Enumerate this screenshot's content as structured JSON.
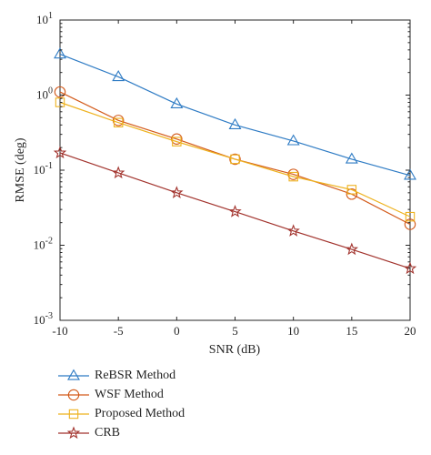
{
  "chart_data": {
    "type": "line",
    "xlabel": "SNR (dB)",
    "ylabel": "RMSE (deg)",
    "x": [
      -10,
      -5,
      0,
      5,
      10,
      15,
      20
    ],
    "xticks": [
      "-10",
      "-5",
      "0",
      "5",
      "10",
      "15",
      "20"
    ],
    "xlim": [
      -10,
      20
    ],
    "ylim": [
      0.001,
      10
    ],
    "yscale": "log",
    "yticks": [
      {
        "value": 0.001,
        "base": "10",
        "exp": "-3"
      },
      {
        "value": 0.01,
        "base": "10",
        "exp": "-2"
      },
      {
        "value": 0.1,
        "base": "10",
        "exp": "-1"
      },
      {
        "value": 1,
        "base": "10",
        "exp": "0"
      },
      {
        "value": 10,
        "base": "10",
        "exp": "1"
      }
    ],
    "grid": false,
    "legend_position": "bottom",
    "series": [
      {
        "name": "ReBSR Method",
        "color": "#2e7bc4",
        "marker": "triangle",
        "values": [
          3.5,
          1.75,
          0.76,
          0.4,
          0.245,
          0.14,
          0.085
        ]
      },
      {
        "name": "WSF Method",
        "color": "#d35a1a",
        "marker": "circle",
        "values": [
          1.1,
          0.46,
          0.26,
          0.14,
          0.088,
          0.048,
          0.019
        ]
      },
      {
        "name": "Proposed Method",
        "color": "#eeb21f",
        "marker": "square",
        "values": [
          0.8,
          0.43,
          0.24,
          0.14,
          0.082,
          0.055,
          0.024
        ]
      },
      {
        "name": "CRB",
        "color": "#a2332d",
        "marker": "star",
        "values": [
          0.17,
          0.092,
          0.05,
          0.028,
          0.0155,
          0.0088,
          0.0049
        ]
      }
    ]
  }
}
